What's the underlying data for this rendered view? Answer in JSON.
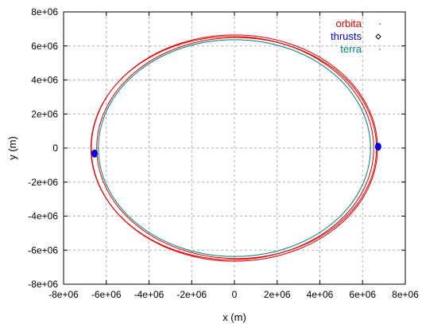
{
  "chart_data": {
    "type": "scatter",
    "title": "",
    "xlabel": "x (m)",
    "ylabel": "y (m)",
    "xlim": [
      -8000000,
      8000000
    ],
    "ylim": [
      -8000000,
      8000000
    ],
    "x_ticks": [
      -8000000,
      -6000000,
      -4000000,
      -2000000,
      0,
      2000000,
      4000000,
      6000000,
      8000000
    ],
    "y_ticks": [
      -8000000,
      -6000000,
      -4000000,
      -2000000,
      0,
      2000000,
      4000000,
      6000000,
      8000000
    ],
    "x_tick_labels": [
      "-8e+06",
      "-6e+06",
      "-4e+06",
      "-2e+06",
      "0",
      "2e+06",
      "4e+06",
      "6e+06",
      "8e+06"
    ],
    "y_tick_labels": [
      "-8e+06",
      "-6e+06",
      "-4e+06",
      "-2e+06",
      "0",
      "2e+06",
      "4e+06",
      "6e+06",
      "8e+06"
    ],
    "grid": true,
    "legend_position": "top-right",
    "series": [
      {
        "name": "orbita",
        "color": "#e00000",
        "rings": [
          {
            "center": [
              0,
              0
            ],
            "rx": 6700000,
            "ry": 6650000
          },
          {
            "center": [
              -100000,
              0
            ],
            "rx": 6620000,
            "ry": 6560000
          },
          {
            "center": [
              100000,
              0
            ],
            "rx": 6550000,
            "ry": 6490000
          }
        ]
      },
      {
        "name": "thrusts",
        "color": "#0000e0",
        "points": [
          {
            "x": 6730000,
            "y": 80000
          },
          {
            "x": -6550000,
            "y": -320000
          }
        ]
      },
      {
        "name": "terra",
        "color": "#008080",
        "rings": [
          {
            "center": [
              0,
              0
            ],
            "rx": 6371000,
            "ry": 6371000
          }
        ]
      }
    ]
  }
}
